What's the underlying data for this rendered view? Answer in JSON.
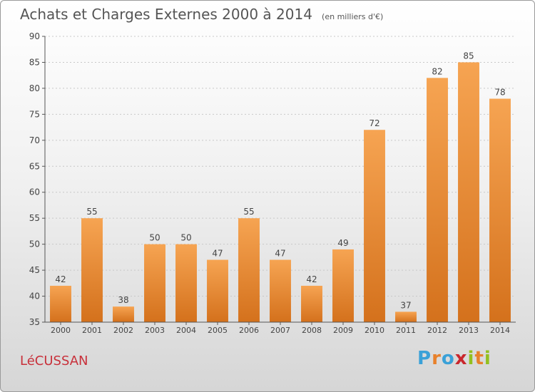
{
  "header": {
    "title": "Achats et Charges Externes 2000 à 2014",
    "subtitle": "(en milliers d'€)"
  },
  "footer": {
    "commune": "LéCUSSAN",
    "logo": {
      "letters": [
        "P",
        "r",
        "o",
        "x",
        "i",
        "t",
        "i"
      ],
      "colors": [
        "#3aa1d8",
        "#e8812b",
        "#3aa1d8",
        "#c9272d",
        "#93c01f",
        "#e8812b",
        "#93c01f"
      ]
    }
  },
  "chart_data": {
    "type": "bar",
    "title": "Achats et Charges Externes 2000 à 2014",
    "subtitle": "(en milliers d'€)",
    "categories": [
      "2000",
      "2001",
      "2002",
      "2003",
      "2004",
      "2005",
      "2006",
      "2007",
      "2008",
      "2009",
      "2010",
      "2011",
      "2012",
      "2013",
      "2014"
    ],
    "values": [
      42,
      55,
      38,
      50,
      50,
      47,
      55,
      47,
      42,
      49,
      72,
      37,
      82,
      85,
      78
    ],
    "ylim": [
      35,
      90
    ],
    "yticks": [
      35,
      40,
      45,
      50,
      55,
      60,
      65,
      70,
      75,
      80,
      85,
      90
    ],
    "xlabel": "",
    "ylabel": "",
    "grid": true,
    "bar_color_top": "#f6a452",
    "bar_color_bottom": "#d4711c",
    "label_color": "#444444"
  }
}
